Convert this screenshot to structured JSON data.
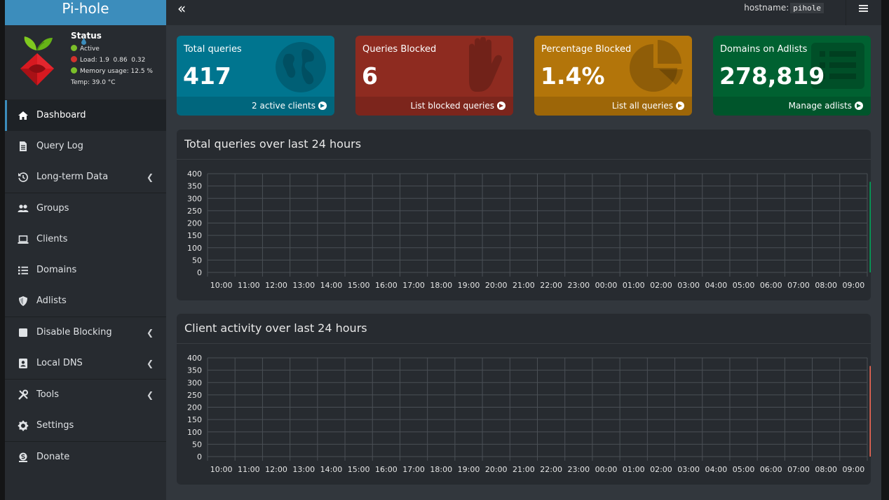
{
  "logo": {
    "text": "Pi-hole"
  },
  "status": {
    "title": "Status",
    "active": "Active",
    "load_label": "Load:",
    "load_values": "1.9  0.86  0.32",
    "memory_label": "Memory usage:",
    "memory_value": "12.5 %",
    "temp_label": "Temp:",
    "temp_value": "39.0 °C"
  },
  "menu": {
    "dashboard": "Dashboard",
    "query_log": "Query Log",
    "long_term": "Long-term Data",
    "groups": "Groups",
    "clients": "Clients",
    "domains": "Domains",
    "adlists": "Adlists",
    "disable_blocking": "Disable Blocking",
    "local_dns": "Local DNS",
    "tools": "Tools",
    "settings": "Settings",
    "donate": "Donate"
  },
  "topbar": {
    "hostname_label": "hostname:",
    "hostname_value": "pihole"
  },
  "stats": {
    "total": {
      "title": "Total queries",
      "value": "417",
      "footer": "2 active clients",
      "color": "#00758f"
    },
    "blocked": {
      "title": "Queries Blocked",
      "value": "6",
      "footer": "List blocked queries",
      "color": "#8e2b20"
    },
    "percent": {
      "title": "Percentage Blocked",
      "value": "1.4%",
      "footer": "List all queries",
      "color": "#b3750a"
    },
    "adlists": {
      "title": "Domains on Adlists",
      "value": "278,819",
      "footer": "Manage adlists",
      "color": "#006131"
    }
  },
  "chart_data": [
    {
      "type": "bar",
      "title": "Total queries over last 24 hours",
      "categories": [
        "10:00",
        "11:00",
        "12:00",
        "13:00",
        "14:00",
        "15:00",
        "16:00",
        "17:00",
        "18:00",
        "19:00",
        "20:00",
        "21:00",
        "22:00",
        "23:00",
        "00:00",
        "01:00",
        "02:00",
        "03:00",
        "04:00",
        "05:00",
        "06:00",
        "07:00",
        "08:00",
        "09:00"
      ],
      "yticks": [
        "400",
        "350",
        "300",
        "250",
        "200",
        "150",
        "100",
        "50",
        "0"
      ],
      "ylim": [
        0,
        400
      ],
      "series": [
        {
          "values": [
            0,
            0,
            0,
            0,
            0,
            0,
            0,
            0,
            0,
            0,
            0,
            0,
            0,
            0,
            0,
            0,
            0,
            0,
            0,
            0,
            0,
            0,
            0,
            367
          ],
          "color": "#00a65a"
        }
      ],
      "grid": true
    },
    {
      "type": "bar",
      "title": "Client activity over last 24 hours",
      "categories": [
        "10:00",
        "11:00",
        "12:00",
        "13:00",
        "14:00",
        "15:00",
        "16:00",
        "17:00",
        "18:00",
        "19:00",
        "20:00",
        "21:00",
        "22:00",
        "23:00",
        "00:00",
        "01:00",
        "02:00",
        "03:00",
        "04:00",
        "05:00",
        "06:00",
        "07:00",
        "08:00",
        "09:00"
      ],
      "yticks": [
        "400",
        "350",
        "300",
        "250",
        "200",
        "150",
        "100",
        "50",
        "0"
      ],
      "ylim": [
        0,
        400
      ],
      "series": [
        {
          "values": [
            0,
            0,
            0,
            0,
            0,
            0,
            0,
            0,
            0,
            0,
            0,
            0,
            0,
            0,
            0,
            0,
            0,
            0,
            0,
            0,
            0,
            0,
            0,
            367
          ],
          "color": "#f56954"
        }
      ],
      "grid": true
    }
  ]
}
